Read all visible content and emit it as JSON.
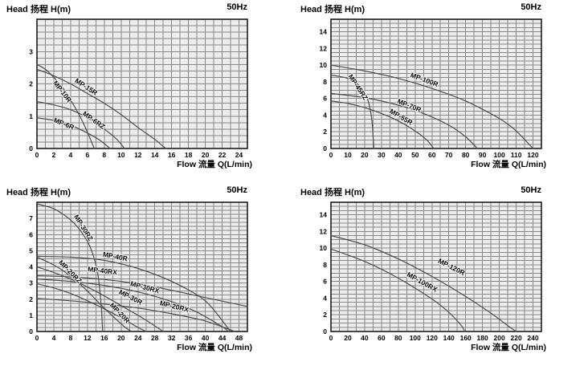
{
  "colors": {
    "page_bg": "#ffffff",
    "plot_bg": "#ededed",
    "grid": "#888888",
    "border": "#1c1c1c",
    "curve": "#4d4d4d",
    "text": "#000000"
  },
  "chart_data": [
    {
      "type": "line",
      "title": "Head 扬程 H(m)",
      "frequency": "50Hz",
      "xlabel": "Flow 流量 Q(L/min)",
      "grid": true,
      "x_axis": {
        "min": 0,
        "max": 25,
        "major": 2,
        "minor": 1,
        "tick_labels": [
          0,
          2,
          4,
          6,
          8,
          10,
          12,
          14,
          16,
          18,
          20,
          22,
          24
        ]
      },
      "y_axis": {
        "min": 0,
        "max": 4.0,
        "major": 1,
        "minor": 0.2,
        "tick_labels": [
          0,
          1,
          2,
          3
        ]
      },
      "series": [
        {
          "name": "MP-10R",
          "points": [
            [
              0,
              2.6
            ],
            [
              1,
              2.45
            ],
            [
              2,
              2.2
            ],
            [
              3,
              1.9
            ],
            [
              4,
              1.5
            ],
            [
              5,
              1.05
            ],
            [
              6,
              0.5
            ],
            [
              6.8,
              0
            ]
          ],
          "label_at": [
            2.8,
            1.72
          ],
          "label_angle": 52
        },
        {
          "name": "MP-15R",
          "points": [
            [
              0,
              2.45
            ],
            [
              2,
              2.25
            ],
            [
              4,
              2.0
            ],
            [
              6,
              1.7
            ],
            [
              8,
              1.4
            ],
            [
              10,
              1.05
            ],
            [
              12,
              0.65
            ],
            [
              14,
              0.28
            ],
            [
              15.3,
              0
            ]
          ],
          "label_at": [
            5.7,
            1.85
          ],
          "label_angle": 33
        },
        {
          "name": "MP-6RZ",
          "points": [
            [
              0,
              1.45
            ],
            [
              2,
              1.35
            ],
            [
              4,
              1.2
            ],
            [
              6,
              0.95
            ],
            [
              8,
              0.6
            ],
            [
              9.5,
              0.28
            ],
            [
              10.4,
              0
            ]
          ],
          "label_at": [
            6.6,
            0.82
          ],
          "label_angle": 35
        },
        {
          "name": "MP-6R",
          "points": [
            [
              0,
              0.95
            ],
            [
              2,
              0.87
            ],
            [
              4,
              0.72
            ],
            [
              6,
              0.48
            ],
            [
              7.5,
              0.25
            ],
            [
              8.7,
              0
            ]
          ],
          "label_at": [
            3.1,
            0.7
          ],
          "label_angle": 22
        }
      ]
    },
    {
      "type": "line",
      "title": "Head 扬程 H(m)",
      "frequency": "50Hz",
      "xlabel": "Flow 流量 Q(L/min)",
      "grid": true,
      "x_axis": {
        "min": 0,
        "max": 125,
        "major": 10,
        "minor": 5,
        "tick_labels": [
          0,
          10,
          20,
          30,
          40,
          50,
          60,
          70,
          80,
          90,
          100,
          110,
          120
        ]
      },
      "y_axis": {
        "min": 0,
        "max": 15.5,
        "major": 2,
        "minor": 0.5,
        "tick_labels": [
          0,
          2,
          4,
          6,
          8,
          10,
          12,
          14
        ]
      },
      "series": [
        {
          "name": "MP-45RZ",
          "points": [
            [
              0,
              8.8
            ],
            [
              5,
              8.65
            ],
            [
              10,
              8.4
            ],
            [
              14,
              8.0
            ],
            [
              18,
              7.3
            ],
            [
              21,
              6.3
            ],
            [
              23,
              5.0
            ],
            [
              24.5,
              3.0
            ],
            [
              25.5,
              0
            ]
          ],
          "label_at": [
            15,
            7.2
          ],
          "label_angle": 56
        },
        {
          "name": "MP-100R",
          "points": [
            [
              0,
              10.0
            ],
            [
              20,
              9.3
            ],
            [
              40,
              8.4
            ],
            [
              60,
              7.2
            ],
            [
              80,
              5.7
            ],
            [
              100,
              3.6
            ],
            [
              110,
              2.1
            ],
            [
              120,
              0
            ]
          ],
          "label_at": [
            55,
            8.0
          ],
          "label_angle": 20
        },
        {
          "name": "MP-70R",
          "points": [
            [
              0,
              6.6
            ],
            [
              20,
              6.1
            ],
            [
              40,
              5.2
            ],
            [
              55,
              4.2
            ],
            [
              70,
              2.8
            ],
            [
              80,
              1.4
            ],
            [
              87,
              0
            ]
          ],
          "label_at": [
            46,
            4.9
          ],
          "label_angle": 22
        },
        {
          "name": "MP-55R",
          "points": [
            [
              0,
              5.7
            ],
            [
              10,
              5.4
            ],
            [
              20,
              4.9
            ],
            [
              30,
              4.2
            ],
            [
              40,
              3.3
            ],
            [
              50,
              2.1
            ],
            [
              57,
              1.0
            ],
            [
              61,
              0
            ]
          ],
          "label_at": [
            41,
            3.55
          ],
          "label_angle": 30
        }
      ]
    },
    {
      "type": "line",
      "title": "Head 扬程 H(m)",
      "frequency": "50Hz",
      "xlabel": "Flow 流量 Q(L/min)",
      "grid": true,
      "x_axis": {
        "min": 0,
        "max": 50,
        "major": 4,
        "minor": 2,
        "tick_labels": [
          0,
          4,
          8,
          12,
          16,
          20,
          24,
          28,
          32,
          36,
          40,
          44,
          48
        ]
      },
      "y_axis": {
        "min": 0,
        "max": 8.0,
        "major": 1,
        "minor": 0.25,
        "tick_labels": [
          0,
          1,
          2,
          3,
          4,
          5,
          6,
          7
        ]
      },
      "series": [
        {
          "name": "MP-30RZ",
          "points": [
            [
              0,
              7.9
            ],
            [
              4,
              7.6
            ],
            [
              8,
              6.9
            ],
            [
              11,
              6.0
            ],
            [
              13,
              5.0
            ],
            [
              14.5,
              3.5
            ],
            [
              15.3,
              1.5
            ],
            [
              15.6,
              0
            ]
          ],
          "label_at": [
            10.6,
            6.35
          ],
          "label_angle": 58
        },
        {
          "name": "MP-40R",
          "points": [
            [
              0,
              4.65
            ],
            [
              8,
              4.6
            ],
            [
              16,
              4.4
            ],
            [
              24,
              3.9
            ],
            [
              32,
              3.1
            ],
            [
              40,
              1.9
            ],
            [
              46,
              0
            ]
          ],
          "label_at": [
            18.5,
            4.5
          ],
          "label_angle": 11
        },
        {
          "name": "MP-20RZ",
          "points": [
            [
              0,
              4.6
            ],
            [
              3,
              4.25
            ],
            [
              6,
              3.8
            ],
            [
              9,
              3.2
            ],
            [
              12,
              2.5
            ],
            [
              15,
              1.7
            ],
            [
              18,
              0.95
            ],
            [
              21,
              0.25
            ],
            [
              22.5,
              0
            ]
          ],
          "label_at": [
            7.5,
            3.6
          ],
          "label_angle": 45
        },
        {
          "name": "MP-40RX",
          "points": [
            [
              0,
              3.45
            ],
            [
              8,
              3.38
            ],
            [
              16,
              3.22
            ],
            [
              24,
              2.95
            ],
            [
              32,
              2.55
            ],
            [
              40,
              2.1
            ],
            [
              50,
              1.55
            ]
          ],
          "label_at": [
            15.5,
            3.62
          ],
          "label_angle": 7
        },
        {
          "name": "MP-30RX",
          "points": [
            [
              0,
              3.25
            ],
            [
              8,
              3.1
            ],
            [
              16,
              2.85
            ],
            [
              24,
              2.45
            ],
            [
              32,
              1.85
            ],
            [
              38,
              1.2
            ],
            [
              44,
              0.3
            ],
            [
              45.5,
              0
            ]
          ],
          "label_at": [
            25.5,
            2.6
          ],
          "label_angle": 15
        },
        {
          "name": "MP-30R",
          "points": [
            [
              0,
              4.0
            ],
            [
              4,
              3.65
            ],
            [
              8,
              3.25
            ],
            [
              12,
              2.75
            ],
            [
              16,
              2.2
            ],
            [
              20,
              1.6
            ],
            [
              25,
              0.85
            ],
            [
              30,
              0
            ]
          ],
          "label_at": [
            22,
            2.0
          ],
          "label_angle": 27
        },
        {
          "name": "MP-20RX",
          "points": [
            [
              0,
              2.05
            ],
            [
              8,
              1.9
            ],
            [
              16,
              1.7
            ],
            [
              24,
              1.45
            ],
            [
              32,
              1.1
            ],
            [
              40,
              0.65
            ],
            [
              47,
              0
            ]
          ],
          "label_at": [
            32.5,
            1.42
          ],
          "label_angle": 14
        },
        {
          "name": "MP-20R",
          "points": [
            [
              0,
              2.95
            ],
            [
              4,
              2.7
            ],
            [
              8,
              2.35
            ],
            [
              12,
              1.9
            ],
            [
              16,
              1.4
            ],
            [
              20,
              0.85
            ],
            [
              24,
              0.25
            ],
            [
              26,
              0
            ]
          ],
          "label_at": [
            19.3,
            1.05
          ],
          "label_angle": 46
        }
      ]
    },
    {
      "type": "line",
      "title": "Head 扬程 H(m)",
      "frequency": "50Hz",
      "xlabel": "Flow 流量 Q(L/min)",
      "grid": true,
      "x_axis": {
        "min": 0,
        "max": 250,
        "major": 20,
        "minor": 10,
        "tick_labels": [
          0,
          20,
          40,
          60,
          80,
          100,
          120,
          140,
          160,
          180,
          200,
          220,
          240
        ]
      },
      "y_axis": {
        "min": 0,
        "max": 15.5,
        "major": 2,
        "minor": 0.5,
        "tick_labels": [
          0,
          2,
          4,
          6,
          8,
          10,
          12,
          14
        ]
      },
      "series": [
        {
          "name": "MP-120R",
          "points": [
            [
              0,
              11.5
            ],
            [
              40,
              10.4
            ],
            [
              80,
              8.7
            ],
            [
              120,
              6.6
            ],
            [
              160,
              4.2
            ],
            [
              190,
              2.2
            ],
            [
              210,
              0.7
            ],
            [
              220,
              0
            ]
          ],
          "label_at": [
            142,
            7.5
          ],
          "label_angle": 27
        },
        {
          "name": "MP-100RX",
          "points": [
            [
              0,
              9.9
            ],
            [
              40,
              8.4
            ],
            [
              80,
              6.4
            ],
            [
              120,
              3.9
            ],
            [
              140,
              2.3
            ],
            [
              155,
              0.7
            ],
            [
              159,
              0
            ]
          ],
          "label_at": [
            107,
            5.7
          ],
          "label_angle": 29
        }
      ]
    }
  ]
}
